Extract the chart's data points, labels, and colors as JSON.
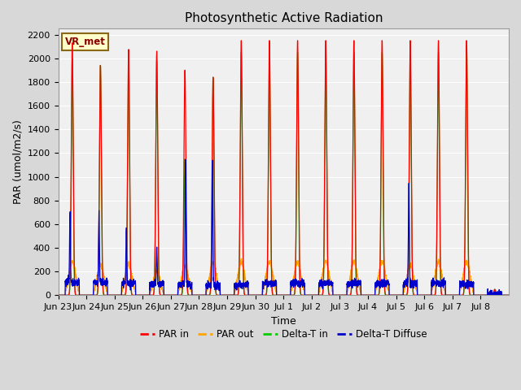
{
  "title": "Photosynthetic Active Radiation",
  "ylabel": "PAR (umol/m2/s)",
  "xlabel": "Time",
  "ylim": [
    0,
    2250
  ],
  "annotation_text": "VR_met",
  "legend_labels": [
    "PAR in",
    "PAR out",
    "Delta-T in",
    "Delta-T Diffuse"
  ],
  "legend_colors": [
    "#ff0000",
    "#ffa500",
    "#00cc00",
    "#0000cc"
  ],
  "line_colors": {
    "par_in": "#ff0000",
    "par_out": "#ffa500",
    "delta_t_in": "#00cc00",
    "delta_t_diffuse": "#0000cc"
  },
  "background_color": "#d8d8d8",
  "plot_bg_color": "#f0f0f0",
  "grid_color": "#ffffff",
  "tick_labels": [
    "Jun 23",
    "Jun 24",
    "Jun 25",
    "Jun 26",
    "Jun 27",
    "Jun 28",
    "Jun 29",
    "Jun 30",
    "Jul 1",
    "Jul 2",
    "Jul 3",
    "Jul 4",
    "Jul 5",
    "Jul 6",
    "Jul 7",
    "Jul 8"
  ],
  "title_fontsize": 11,
  "axis_label_fontsize": 9,
  "tick_fontsize": 8,
  "day_configs": [
    {
      "par_in_peak": 2130,
      "par_out_peak": 285,
      "delta_t_peak": 2000,
      "diffuse_spike": 580,
      "diffuse_spike_day": 0.42,
      "diffuse_base": 110,
      "cloudy": false
    },
    {
      "par_in_peak": 1940,
      "par_out_peak": 255,
      "delta_t_peak": 1940,
      "diffuse_spike": 570,
      "diffuse_spike_day": 0.45,
      "diffuse_base": 110,
      "cloudy": false
    },
    {
      "par_in_peak": 2075,
      "par_out_peak": 260,
      "delta_t_peak": 2000,
      "diffuse_spike": 460,
      "diffuse_spike_day": 0.42,
      "diffuse_base": 100,
      "cloudy": false
    },
    {
      "par_in_peak": 2060,
      "par_out_peak": 200,
      "delta_t_peak": 1980,
      "diffuse_spike": 310,
      "diffuse_spike_day": 0.5,
      "diffuse_base": 95,
      "cloudy": false
    },
    {
      "par_in_peak": 1900,
      "par_out_peak": 245,
      "delta_t_peak": 1150,
      "diffuse_spike": 1050,
      "diffuse_spike_day": 0.52,
      "diffuse_base": 90,
      "cloudy": true
    },
    {
      "par_in_peak": 1840,
      "par_out_peak": 275,
      "delta_t_peak": 1840,
      "diffuse_spike": 1060,
      "diffuse_spike_day": 0.48,
      "diffuse_base": 85,
      "cloudy": false
    },
    {
      "par_in_peak": 2150,
      "par_out_peak": 280,
      "delta_t_peak": 2050,
      "diffuse_spike": 100,
      "diffuse_spike_day": 0.5,
      "diffuse_base": 85,
      "cloudy": false
    },
    {
      "par_in_peak": 2150,
      "par_out_peak": 280,
      "delta_t_peak": 2050,
      "diffuse_spike": 100,
      "diffuse_spike_day": 0.5,
      "diffuse_base": 100,
      "cloudy": false
    },
    {
      "par_in_peak": 2150,
      "par_out_peak": 285,
      "delta_t_peak": 2050,
      "diffuse_spike": 90,
      "diffuse_spike_day": 0.5,
      "diffuse_base": 100,
      "cloudy": false
    },
    {
      "par_in_peak": 2150,
      "par_out_peak": 285,
      "delta_t_peak": 2050,
      "diffuse_spike": 90,
      "diffuse_spike_day": 0.5,
      "diffuse_base": 100,
      "cloudy": false
    },
    {
      "par_in_peak": 2150,
      "par_out_peak": 285,
      "delta_t_peak": 2050,
      "diffuse_spike": 90,
      "diffuse_spike_day": 0.5,
      "diffuse_base": 100,
      "cloudy": false
    },
    {
      "par_in_peak": 2150,
      "par_out_peak": 285,
      "delta_t_peak": 2050,
      "diffuse_spike": 90,
      "diffuse_spike_day": 0.5,
      "diffuse_base": 100,
      "cloudy": false
    },
    {
      "par_in_peak": 2150,
      "par_out_peak": 255,
      "delta_t_peak": 2050,
      "diffuse_spike": 840,
      "diffuse_spike_day": 0.45,
      "diffuse_base": 100,
      "cloudy": false
    },
    {
      "par_in_peak": 2150,
      "par_out_peak": 280,
      "delta_t_peak": 2050,
      "diffuse_spike": 90,
      "diffuse_spike_day": 0.5,
      "diffuse_base": 100,
      "cloudy": false
    },
    {
      "par_in_peak": 2150,
      "par_out_peak": 285,
      "delta_t_peak": 2100,
      "diffuse_spike": 90,
      "diffuse_spike_day": 0.5,
      "diffuse_base": 95,
      "cloudy": false
    },
    {
      "par_in_peak": 50,
      "par_out_peak": 10,
      "delta_t_peak": 50,
      "diffuse_spike": 10,
      "diffuse_spike_day": 0.5,
      "diffuse_base": 10,
      "cloudy": false
    }
  ]
}
